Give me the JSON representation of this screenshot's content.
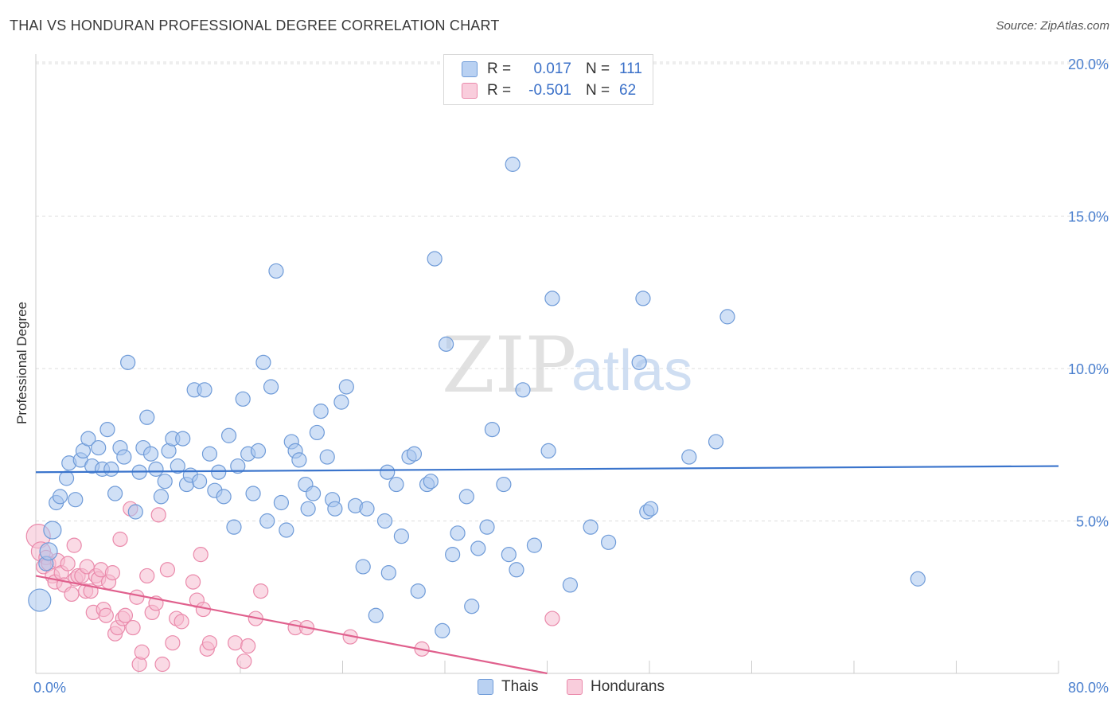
{
  "title": "THAI VS HONDURAN PROFESSIONAL DEGREE CORRELATION CHART",
  "source": "Source: ZipAtlas.com",
  "watermark": {
    "zip": "ZIP",
    "atlas": "atlas"
  },
  "legend": {
    "thais": {
      "r_label": "R =",
      "r_value": "0.017",
      "n_label": "N =",
      "n_value": "111"
    },
    "hondurans": {
      "r_label": "R =",
      "r_value": "-0.501",
      "n_label": "N =",
      "n_value": "62"
    }
  },
  "colors": {
    "thais_fill": "#a9c6ee",
    "thais_stroke": "#6f9bd8",
    "thais_line": "#3a74cc",
    "hondurans_fill": "#f6bcd0",
    "hondurans_stroke": "#ea8aab",
    "hondurans_line": "#e0608d",
    "grid": "#dddddd",
    "tick_text": "#4a7fce"
  },
  "chart_data": {
    "type": "scatter",
    "title": "THAI VS HONDURAN PROFESSIONAL DEGREE CORRELATION CHART",
    "xlabel": "",
    "ylabel": "Professional Degree",
    "xlim": [
      0,
      80
    ],
    "ylim": [
      0,
      20
    ],
    "x_tick_labels": [
      "0.0%",
      "80.0%"
    ],
    "y_ticks": [
      5,
      10,
      15,
      20
    ],
    "y_tick_labels": [
      "5.0%",
      "10.0%",
      "15.0%",
      "20.0%"
    ],
    "legend_entries": [
      "Thais",
      "Hondurans"
    ],
    "series": [
      {
        "name": "Thais",
        "trend": {
          "x": [
            0,
            80
          ],
          "y": [
            6.6,
            6.8
          ]
        },
        "points": [
          [
            0.3,
            2.4
          ],
          [
            0.8,
            3.6
          ],
          [
            1.0,
            4.0
          ],
          [
            1.3,
            4.7
          ],
          [
            1.6,
            5.6
          ],
          [
            1.9,
            5.8
          ],
          [
            2.4,
            6.4
          ],
          [
            2.6,
            6.9
          ],
          [
            3.1,
            5.7
          ],
          [
            3.5,
            7.0
          ],
          [
            3.7,
            7.3
          ],
          [
            4.1,
            7.7
          ],
          [
            4.4,
            6.8
          ],
          [
            4.9,
            7.4
          ],
          [
            5.2,
            6.7
          ],
          [
            5.6,
            8.0
          ],
          [
            5.9,
            6.7
          ],
          [
            6.2,
            5.9
          ],
          [
            6.6,
            7.4
          ],
          [
            6.9,
            7.1
          ],
          [
            7.2,
            10.2
          ],
          [
            7.8,
            5.3
          ],
          [
            8.1,
            6.6
          ],
          [
            8.4,
            7.4
          ],
          [
            8.7,
            8.4
          ],
          [
            9.0,
            7.2
          ],
          [
            9.4,
            6.7
          ],
          [
            9.8,
            5.8
          ],
          [
            10.1,
            6.3
          ],
          [
            10.4,
            7.3
          ],
          [
            10.7,
            7.7
          ],
          [
            11.1,
            6.8
          ],
          [
            11.5,
            7.7
          ],
          [
            11.8,
            6.2
          ],
          [
            12.1,
            6.5
          ],
          [
            12.4,
            9.3
          ],
          [
            12.8,
            6.3
          ],
          [
            13.2,
            9.3
          ],
          [
            13.6,
            7.2
          ],
          [
            14.0,
            6.0
          ],
          [
            14.3,
            6.6
          ],
          [
            14.7,
            5.8
          ],
          [
            15.1,
            7.8
          ],
          [
            15.5,
            4.8
          ],
          [
            15.8,
            6.8
          ],
          [
            16.2,
            9.0
          ],
          [
            16.6,
            7.2
          ],
          [
            17.0,
            5.9
          ],
          [
            17.4,
            7.3
          ],
          [
            17.8,
            10.2
          ],
          [
            18.1,
            5.0
          ],
          [
            18.4,
            9.4
          ],
          [
            18.8,
            13.2
          ],
          [
            19.2,
            5.6
          ],
          [
            19.6,
            4.7
          ],
          [
            20.0,
            7.6
          ],
          [
            20.3,
            7.3
          ],
          [
            20.6,
            7.0
          ],
          [
            21.1,
            6.2
          ],
          [
            21.3,
            5.4
          ],
          [
            21.7,
            5.9
          ],
          [
            22.0,
            7.9
          ],
          [
            22.3,
            8.6
          ],
          [
            22.8,
            7.1
          ],
          [
            23.2,
            5.7
          ],
          [
            23.4,
            5.4
          ],
          [
            23.9,
            8.9
          ],
          [
            24.3,
            9.4
          ],
          [
            25.0,
            5.5
          ],
          [
            25.6,
            3.5
          ],
          [
            25.9,
            5.4
          ],
          [
            26.6,
            1.9
          ],
          [
            27.3,
            5.0
          ],
          [
            27.5,
            6.6
          ],
          [
            27.6,
            3.3
          ],
          [
            28.2,
            6.2
          ],
          [
            28.6,
            4.5
          ],
          [
            29.2,
            7.1
          ],
          [
            29.6,
            7.2
          ],
          [
            29.9,
            2.7
          ],
          [
            30.6,
            6.2
          ],
          [
            30.9,
            6.3
          ],
          [
            31.2,
            13.6
          ],
          [
            31.8,
            1.4
          ],
          [
            32.1,
            10.8
          ],
          [
            32.6,
            3.9
          ],
          [
            33.0,
            4.6
          ],
          [
            33.7,
            5.8
          ],
          [
            34.1,
            2.2
          ],
          [
            34.6,
            4.1
          ],
          [
            35.3,
            4.8
          ],
          [
            35.7,
            8.0
          ],
          [
            36.6,
            6.2
          ],
          [
            37.0,
            3.9
          ],
          [
            37.3,
            16.7
          ],
          [
            37.6,
            3.4
          ],
          [
            38.1,
            9.3
          ],
          [
            39.0,
            4.2
          ],
          [
            40.1,
            7.3
          ],
          [
            40.4,
            12.3
          ],
          [
            41.8,
            2.9
          ],
          [
            43.4,
            4.8
          ],
          [
            44.8,
            4.3
          ],
          [
            47.2,
            10.2
          ],
          [
            47.5,
            12.3
          ],
          [
            47.8,
            5.3
          ],
          [
            48.1,
            5.4
          ],
          [
            51.1,
            7.1
          ],
          [
            53.2,
            7.6
          ],
          [
            54.1,
            11.7
          ],
          [
            69.0,
            3.1
          ]
        ]
      },
      {
        "name": "Hondurans",
        "trend": {
          "x": [
            0,
            40
          ],
          "y": [
            3.2,
            0.0
          ]
        },
        "points": [
          [
            0.2,
            4.5
          ],
          [
            0.4,
            4.0
          ],
          [
            0.6,
            3.5
          ],
          [
            0.8,
            3.8
          ],
          [
            1.0,
            3.6
          ],
          [
            1.3,
            3.2
          ],
          [
            1.5,
            3.0
          ],
          [
            1.7,
            3.7
          ],
          [
            2.0,
            3.3
          ],
          [
            2.2,
            2.9
          ],
          [
            2.5,
            3.6
          ],
          [
            2.8,
            2.6
          ],
          [
            3.0,
            4.2
          ],
          [
            3.1,
            3.1
          ],
          [
            3.3,
            3.2
          ],
          [
            3.6,
            3.2
          ],
          [
            3.9,
            2.7
          ],
          [
            4.0,
            3.5
          ],
          [
            4.3,
            2.7
          ],
          [
            4.5,
            2.0
          ],
          [
            4.7,
            3.2
          ],
          [
            4.9,
            3.1
          ],
          [
            5.1,
            3.4
          ],
          [
            5.3,
            2.1
          ],
          [
            5.5,
            1.9
          ],
          [
            5.7,
            3.0
          ],
          [
            6.0,
            3.3
          ],
          [
            6.2,
            1.3
          ],
          [
            6.4,
            1.5
          ],
          [
            6.6,
            4.4
          ],
          [
            6.8,
            1.8
          ],
          [
            7.0,
            1.9
          ],
          [
            7.4,
            5.4
          ],
          [
            7.6,
            1.5
          ],
          [
            7.9,
            2.5
          ],
          [
            8.1,
            0.3
          ],
          [
            8.3,
            0.7
          ],
          [
            8.7,
            3.2
          ],
          [
            9.1,
            2.0
          ],
          [
            9.4,
            2.3
          ],
          [
            9.6,
            5.2
          ],
          [
            9.9,
            0.3
          ],
          [
            10.3,
            3.4
          ],
          [
            10.7,
            1.0
          ],
          [
            11.0,
            1.8
          ],
          [
            11.4,
            1.7
          ],
          [
            12.3,
            3.0
          ],
          [
            12.6,
            2.4
          ],
          [
            12.9,
            3.9
          ],
          [
            13.1,
            2.1
          ],
          [
            13.4,
            0.8
          ],
          [
            13.6,
            1.0
          ],
          [
            15.6,
            1.0
          ],
          [
            16.3,
            0.4
          ],
          [
            16.6,
            0.9
          ],
          [
            17.2,
            1.8
          ],
          [
            17.6,
            2.7
          ],
          [
            20.3,
            1.5
          ],
          [
            21.2,
            1.5
          ],
          [
            24.6,
            1.2
          ],
          [
            30.2,
            0.8
          ],
          [
            40.4,
            1.8
          ]
        ]
      }
    ]
  },
  "bottom_legend": {
    "thais": "Thais",
    "hondurans": "Hondurans"
  }
}
